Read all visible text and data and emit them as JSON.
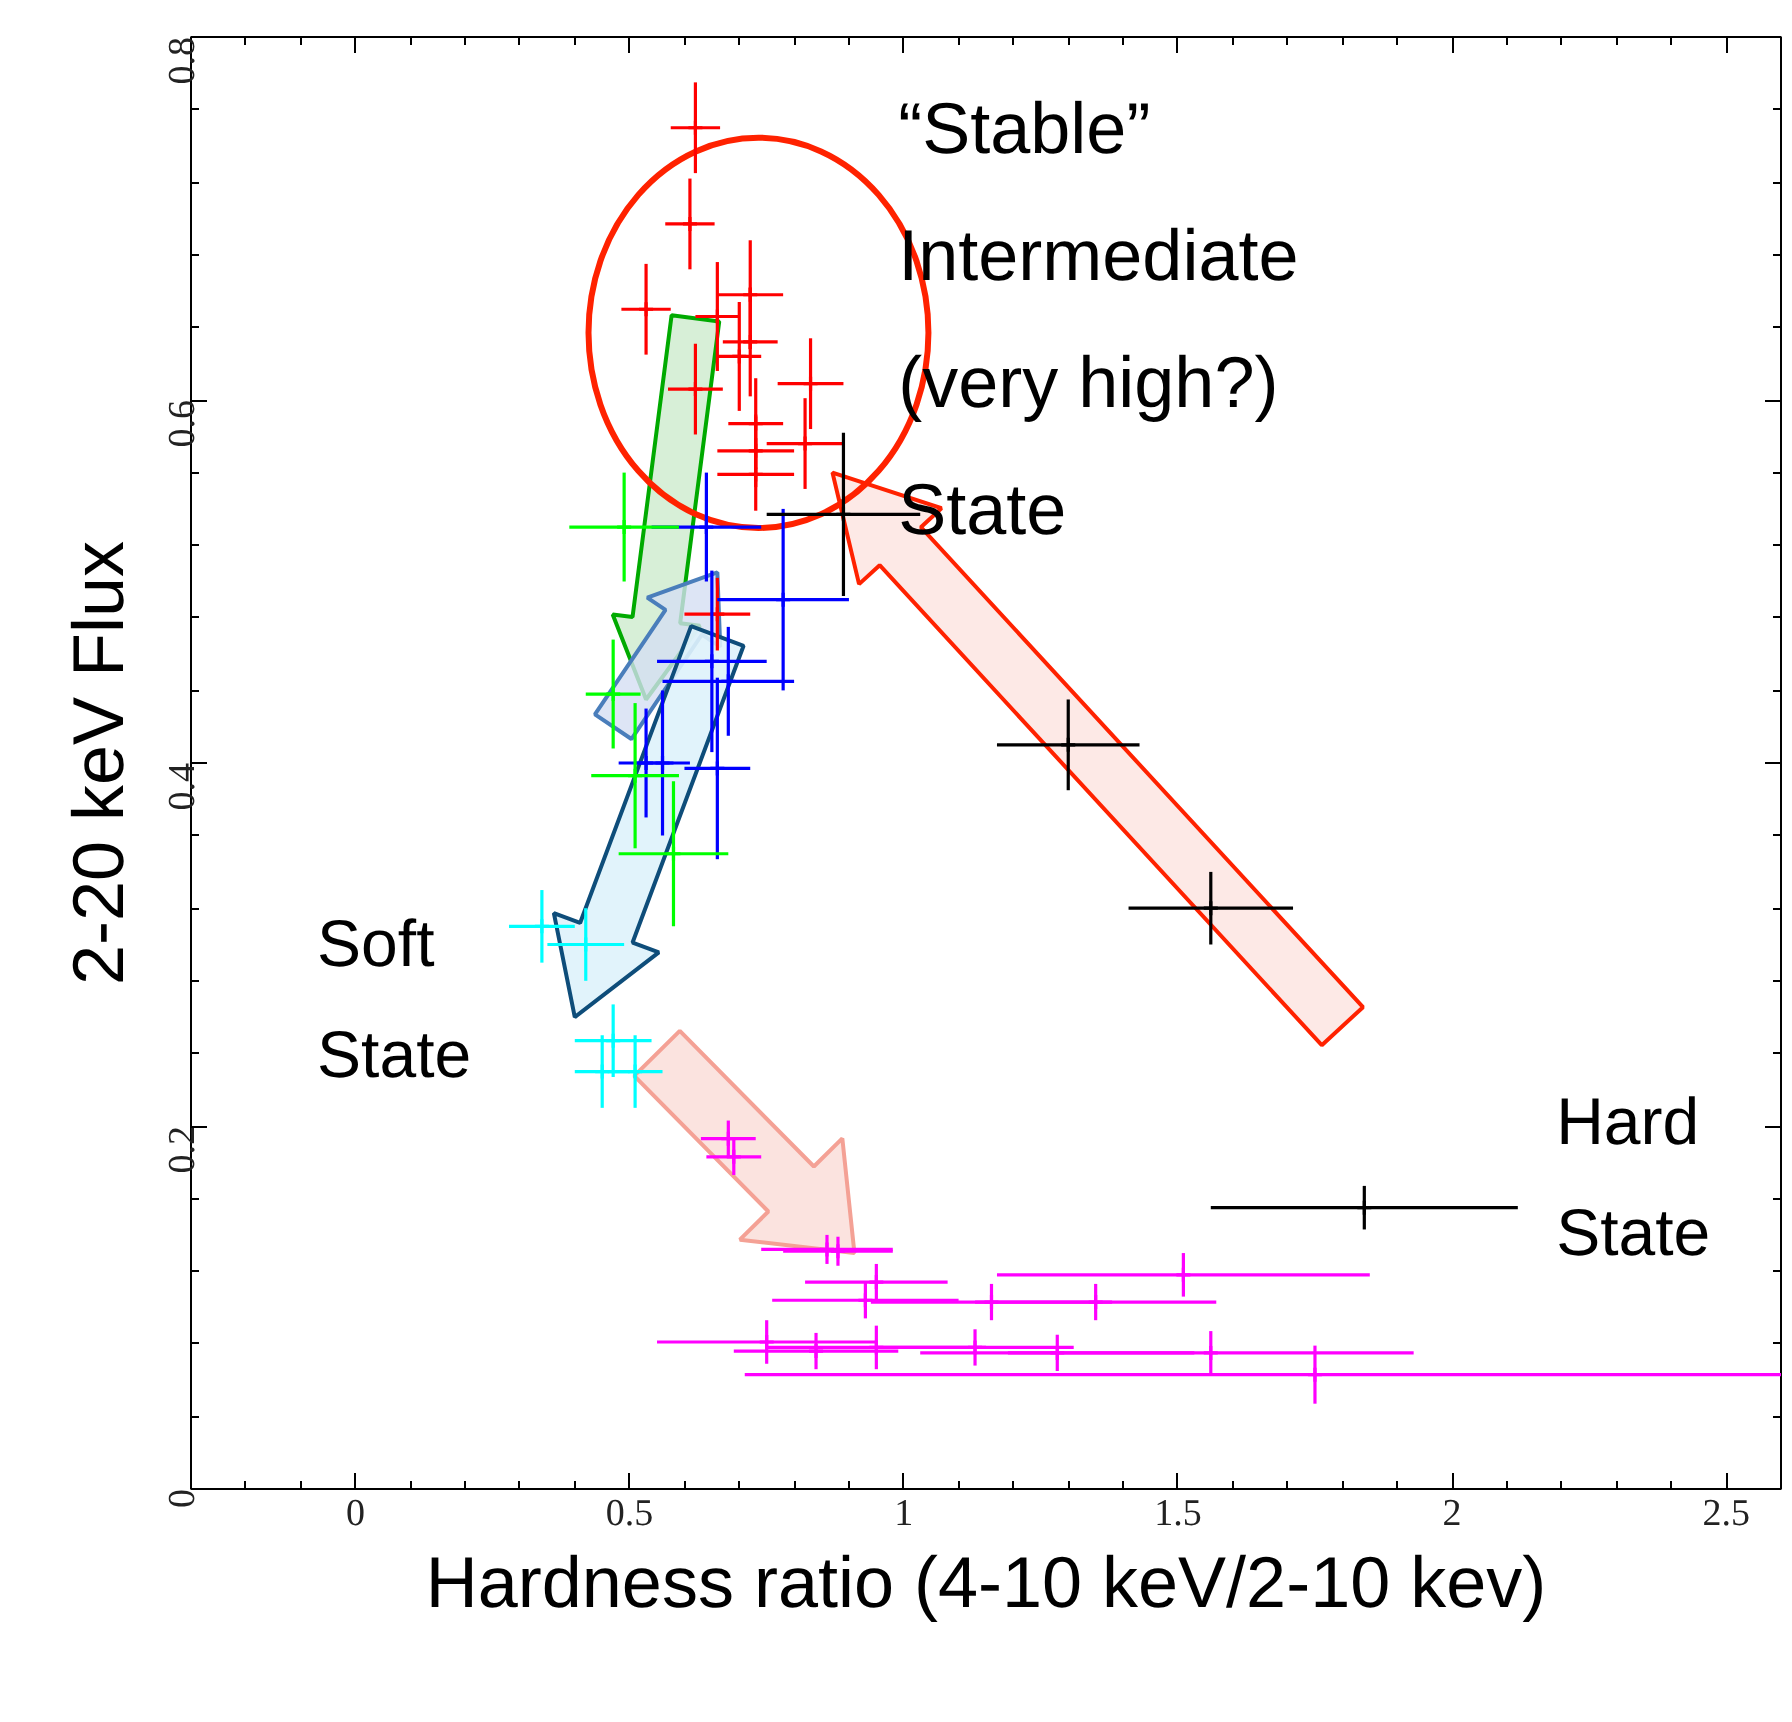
{
  "chart_data": {
    "type": "scatter",
    "xlabel": "Hardness ratio (4-10 keV/2-10 kev)",
    "ylabel": "2-20 keV Flux",
    "xlim": [
      -0.3,
      2.6
    ],
    "ylim": [
      0,
      0.8
    ],
    "xticks": [
      0,
      0.5,
      1,
      1.5,
      2,
      2.5
    ],
    "yticks": [
      0,
      0.2,
      0.4,
      0.6,
      0.8
    ],
    "marker": "cross",
    "grid": false,
    "series": [
      {
        "color": "#ff0000",
        "x": [
          0.62,
          0.61,
          0.53,
          0.66,
          0.72,
          0.62,
          0.7,
          0.72,
          0.83,
          0.73,
          0.82,
          0.73,
          0.73,
          0.66
        ],
        "values": [
          0.75,
          0.697,
          0.65,
          0.646,
          0.658,
          0.606,
          0.624,
          0.632,
          0.609,
          0.587,
          0.576,
          0.572,
          0.559,
          0.482
        ],
        "errors": [
          0.025,
          0.025,
          0.025,
          0.03,
          0.03,
          0.025,
          0.03,
          0.03,
          0.025,
          0.025,
          0.025,
          0.02,
          0.02,
          0.02
        ],
        "xerrors": [
          0.045,
          0.045,
          0.045,
          0.04,
          0.06,
          0.05,
          0.04,
          0.05,
          0.06,
          0.05,
          0.07,
          0.07,
          0.07,
          0.06
        ]
      },
      {
        "color": "#0000ff",
        "x": [
          0.64,
          0.78,
          0.68,
          0.65,
          0.56,
          0.66,
          0.53
        ],
        "values": [
          0.53,
          0.49,
          0.445,
          0.456,
          0.4,
          0.397,
          0.4
        ],
        "errors": [
          0.03,
          0.05,
          0.03,
          0.05,
          0.04,
          0.05,
          0.03
        ],
        "xerrors": [
          0.1,
          0.12,
          0.12,
          0.1,
          0.05,
          0.06,
          0.05
        ]
      },
      {
        "color": "#00ff00",
        "x": [
          0.49,
          0.47,
          0.51,
          0.58
        ],
        "values": [
          0.53,
          0.438,
          0.393,
          0.35
        ],
        "errors": [
          0.03,
          0.03,
          0.04,
          0.04
        ],
        "xerrors": [
          0.1,
          0.05,
          0.08,
          0.1
        ]
      },
      {
        "color": "#00ffff",
        "x": [
          0.34,
          0.42,
          0.47,
          0.45,
          0.51
        ],
        "values": [
          0.31,
          0.3,
          0.247,
          0.23,
          0.23
        ],
        "errors": [
          0.02,
          0.02,
          0.02,
          0.02,
          0.02
        ],
        "xerrors": [
          0.06,
          0.07,
          0.07,
          0.05,
          0.05
        ]
      },
      {
        "color": "#ff00ff",
        "x": [
          0.68,
          0.69,
          0.86,
          0.88,
          1.51,
          0.95,
          0.93,
          1.16,
          1.35,
          0.75,
          0.84,
          0.95,
          1.13,
          1.28,
          1.56,
          1.75
        ],
        "values": [
          0.193,
          0.183,
          0.132,
          0.131,
          0.118,
          0.114,
          0.104,
          0.103,
          0.103,
          0.081,
          0.076,
          0.078,
          0.078,
          0.075,
          0.075,
          0.063
        ],
        "errors": [
          0.01,
          0.01,
          0.008,
          0.008,
          0.012,
          0.01,
          0.01,
          0.01,
          0.01,
          0.012,
          0.01,
          0.012,
          0.01,
          0.01,
          0.012,
          0.016
        ],
        "xerrors": [
          0.05,
          0.05,
          0.12,
          0.1,
          0.34,
          0.13,
          0.17,
          0.22,
          0.22,
          0.2,
          0.15,
          0.2,
          0.18,
          0.25,
          0.37,
          [
            0.71,
            2.6
          ]
        ]
      },
      {
        "color": "#000000",
        "x": [
          0.89,
          1.3,
          1.56,
          1.84
        ],
        "values": [
          0.537,
          0.41,
          0.32,
          0.155
        ],
        "errors": [
          0.045,
          0.025,
          0.02,
          0.012
        ],
        "xerrors": [
          0.14,
          0.13,
          0.15,
          0.28
        ]
      }
    ],
    "annotations": [
      "“Stable”\nIntermediate\n (very high?)\nState",
      "Soft\nState",
      "Hard\nState"
    ]
  }
}
